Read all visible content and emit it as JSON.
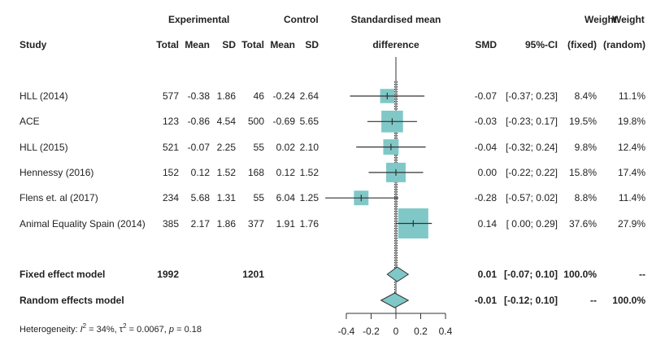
{
  "headers": {
    "experimental": "Experimental",
    "control": "Control",
    "smd_line1": "Standardised mean",
    "smd_line2": "difference",
    "study": "Study",
    "e_total": "Total",
    "e_mean": "Mean",
    "e_sd": "SD",
    "c_total": "Total",
    "c_mean": "Mean",
    "c_sd": "SD",
    "smd": "SMD",
    "ci": "95%-CI",
    "weight1": "Weight",
    "weight2": "Weight",
    "w_fixed": "(fixed)",
    "w_random": "(random)"
  },
  "studies": [
    {
      "name": "HLL (2014)",
      "e_total": "577",
      "e_mean": "-0.38",
      "e_sd": "1.86",
      "c_total": "46",
      "c_mean": "-0.24",
      "c_sd": "2.64",
      "smd": "-0.07",
      "ci": "[-0.37; 0.23]",
      "w_fixed": "8.4%",
      "w_random": "11.1%"
    },
    {
      "name": "ACE",
      "e_total": "123",
      "e_mean": "-0.86",
      "e_sd": "4.54",
      "c_total": "500",
      "c_mean": "-0.69",
      "c_sd": "5.65",
      "smd": "-0.03",
      "ci": "[-0.23; 0.17]",
      "w_fixed": "19.5%",
      "w_random": "19.8%"
    },
    {
      "name": "HLL (2015)",
      "e_total": "521",
      "e_mean": "-0.07",
      "e_sd": "2.25",
      "c_total": "55",
      "c_mean": "0.02",
      "c_sd": "2.10",
      "smd": "-0.04",
      "ci": "[-0.32; 0.24]",
      "w_fixed": "9.8%",
      "w_random": "12.4%"
    },
    {
      "name": "Hennessy (2016)",
      "e_total": "152",
      "e_mean": "0.12",
      "e_sd": "1.52",
      "c_total": "168",
      "c_mean": "0.12",
      "c_sd": "1.52",
      "smd": "0.00",
      "ci": "[-0.22; 0.22]",
      "w_fixed": "15.8%",
      "w_random": "17.4%"
    },
    {
      "name": "Flens et. al (2017)",
      "e_total": "234",
      "e_mean": "5.68",
      "e_sd": "1.31",
      "c_total": "55",
      "c_mean": "6.04",
      "c_sd": "1.25",
      "smd": "-0.28",
      "ci": "[-0.57; 0.02]",
      "w_fixed": "8.8%",
      "w_random": "11.4%"
    },
    {
      "name": "Animal Equality Spain (2014)",
      "e_total": "385",
      "e_mean": "2.17",
      "e_sd": "1.86",
      "c_total": "377",
      "c_mean": "1.91",
      "c_sd": "1.76",
      "smd": "0.14",
      "ci": "[ 0.00; 0.29]",
      "w_fixed": "37.6%",
      "w_random": "27.9%"
    }
  ],
  "fixed": {
    "label": "Fixed effect model",
    "e_total": "1992",
    "c_total": "1201",
    "smd": "0.01",
    "ci": "[-0.07; 0.10]",
    "w_fixed": "100.0%",
    "w_random": "--"
  },
  "random": {
    "label": "Random effects model",
    "smd": "-0.01",
    "ci": "[-0.12; 0.10]",
    "w_fixed": "--",
    "w_random": "100.0%"
  },
  "heterogeneity": {
    "prefix": "Heterogeneity: ",
    "i2_label": "I",
    "i2_value": " = 34%, ",
    "tau_label": "τ",
    "tau_value": " = 0.0067, ",
    "p_label": "p",
    "p_value": " = 0.18"
  },
  "chart_data": {
    "type": "forest",
    "title": "",
    "xlabel": "Standardised mean difference",
    "xlim": [
      -0.4,
      0.4
    ],
    "xticks": [
      -0.4,
      -0.2,
      0,
      0.2,
      0.4
    ],
    "xtick_labels": [
      "-0.4",
      "-0.2",
      "0",
      "0.2",
      "0.4"
    ],
    "colors": {
      "box": "#80C8C8",
      "line": "#333333",
      "diamond": "#80C8C8"
    },
    "studies": [
      {
        "name": "HLL (2014)",
        "smd": -0.07,
        "lower": -0.37,
        "upper": 0.23,
        "weight_fixed": 8.4
      },
      {
        "name": "ACE",
        "smd": -0.03,
        "lower": -0.23,
        "upper": 0.17,
        "weight_fixed": 19.5
      },
      {
        "name": "HLL (2015)",
        "smd": -0.04,
        "lower": -0.32,
        "upper": 0.24,
        "weight_fixed": 9.8
      },
      {
        "name": "Hennessy (2016)",
        "smd": 0.0,
        "lower": -0.22,
        "upper": 0.22,
        "weight_fixed": 15.8
      },
      {
        "name": "Flens et. al (2017)",
        "smd": -0.28,
        "lower": -0.57,
        "upper": 0.02,
        "weight_fixed": 8.8
      },
      {
        "name": "Animal Equality Spain (2014)",
        "smd": 0.14,
        "lower": 0.0,
        "upper": 0.29,
        "weight_fixed": 37.6
      }
    ],
    "pooled": [
      {
        "name": "Fixed effect model",
        "smd": 0.01,
        "lower": -0.07,
        "upper": 0.1
      },
      {
        "name": "Random effects model",
        "smd": -0.01,
        "lower": -0.12,
        "upper": 0.1
      }
    ]
  }
}
